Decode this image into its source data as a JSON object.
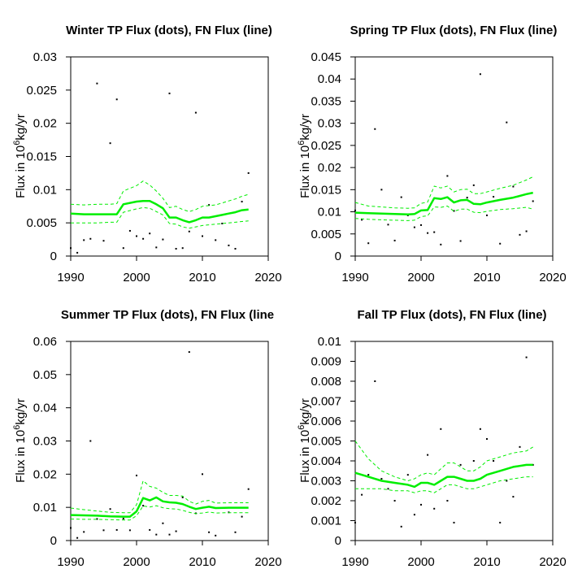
{
  "chart_data": [
    {
      "type": "scatter",
      "title": "Winter TP Flux (dots), FN Flux (line)",
      "ylabel": "Flux in 10^6kg/yr",
      "xlim": [
        1990,
        2020
      ],
      "ylim": [
        0,
        0.03
      ],
      "xticks": [
        1990,
        2000,
        2010,
        2020
      ],
      "yticks": [
        0,
        0.005,
        0.01,
        0.015,
        0.02,
        0.025,
        0.03
      ],
      "ytick_labels": [
        "0",
        "0.005",
        "0.01",
        "0.015",
        "0.02",
        "0.025",
        "0.03"
      ],
      "series": [
        {
          "kind": "dots",
          "color": "#000000",
          "x": [
            1990,
            1991,
            1992,
            1993,
            1994,
            1995,
            1996,
            1997,
            1998,
            1999,
            2000,
            2001,
            2002,
            2003,
            2004,
            2005,
            2006,
            2007,
            2008,
            2009,
            2010,
            2011,
            2012,
            2013,
            2014,
            2015,
            2016,
            2017
          ],
          "y": [
            0.0012,
            0.0005,
            0.0024,
            0.0026,
            0.026,
            0.0023,
            0.017,
            0.0236,
            0.0012,
            0.0038,
            0.003,
            0.0026,
            0.0034,
            0.0013,
            0.0025,
            0.0245,
            0.0011,
            0.0012,
            0.0037,
            0.0216,
            0.003,
            0.0077,
            0.0024,
            0.0049,
            0.0016,
            0.0011,
            0.0082,
            0.0125
          ]
        },
        {
          "kind": "line",
          "color": "#00ee00",
          "width": 2.5,
          "x": [
            1990,
            1992,
            1994,
            1996,
            1997,
            1998,
            2000,
            2001,
            2002,
            2003,
            2004,
            2005,
            2006,
            2007,
            2008,
            2009,
            2010,
            2011,
            2012,
            2013,
            2014,
            2015,
            2016,
            2017
          ],
          "y": [
            0.0064,
            0.0063,
            0.0063,
            0.0063,
            0.0063,
            0.0078,
            0.0082,
            0.0083,
            0.0083,
            0.0078,
            0.0072,
            0.0058,
            0.0058,
            0.0054,
            0.0051,
            0.0054,
            0.0058,
            0.0058,
            0.006,
            0.0062,
            0.0064,
            0.0066,
            0.0069,
            0.007
          ]
        },
        {
          "kind": "band",
          "color": "#00ee00",
          "dashed": true,
          "x": [
            1990,
            1992,
            1994,
            1996,
            1997,
            1998,
            2000,
            2001,
            2002,
            2003,
            2004,
            2005,
            2006,
            2007,
            2008,
            2009,
            2010,
            2011,
            2012,
            2013,
            2014,
            2015,
            2016,
            2017
          ],
          "y": [
            0.0078,
            0.0077,
            0.0078,
            0.0078,
            0.0079,
            0.0098,
            0.0106,
            0.0113,
            0.0107,
            0.0098,
            0.0087,
            0.0073,
            0.0075,
            0.007,
            0.0067,
            0.007,
            0.0075,
            0.0076,
            0.0077,
            0.008,
            0.0083,
            0.0086,
            0.009,
            0.0093
          ]
        },
        {
          "kind": "band",
          "color": "#00ee00",
          "dashed": true,
          "x": [
            1990,
            1992,
            1994,
            1996,
            1997,
            1998,
            2000,
            2001,
            2002,
            2003,
            2004,
            2005,
            2006,
            2007,
            2008,
            2009,
            2010,
            2011,
            2012,
            2013,
            2014,
            2015,
            2016,
            2017
          ],
          "y": [
            0.005,
            0.005,
            0.005,
            0.0051,
            0.0051,
            0.0066,
            0.0071,
            0.0073,
            0.0072,
            0.0067,
            0.0062,
            0.0049,
            0.0048,
            0.0044,
            0.0042,
            0.0044,
            0.0046,
            0.0047,
            0.0048,
            0.0049,
            0.005,
            0.0051,
            0.0052,
            0.0053
          ]
        }
      ]
    },
    {
      "type": "scatter",
      "title": "Spring TP Flux (dots), FN Flux (line)",
      "ylabel": "Flux in 10^6kg/yr",
      "xlim": [
        1990,
        2020
      ],
      "ylim": [
        0,
        0.045
      ],
      "xticks": [
        1990,
        2000,
        2010,
        2020
      ],
      "yticks": [
        0,
        0.005,
        0.01,
        0.015,
        0.02,
        0.025,
        0.03,
        0.035,
        0.04,
        0.045
      ],
      "ytick_labels": [
        "0",
        "0.005",
        "0.01",
        "0.015",
        "0.02",
        "0.025",
        "0.03",
        "0.035",
        "0.04",
        "0.045"
      ],
      "series": [
        {
          "kind": "dots",
          "color": "#000000",
          "x": [
            1990,
            1991,
            1992,
            1993,
            1994,
            1995,
            1996,
            1997,
            1998,
            1999,
            2000,
            2001,
            2002,
            2003,
            2004,
            2005,
            2006,
            2007,
            2008,
            2009,
            2010,
            2011,
            2012,
            2013,
            2014,
            2015,
            2016,
            2017
          ],
          "y": [
            0.0103,
            0.0082,
            0.0029,
            0.0287,
            0.015,
            0.0071,
            0.0035,
            0.0133,
            0.0092,
            0.0065,
            0.007,
            0.0052,
            0.0054,
            0.0026,
            0.0181,
            0.0102,
            0.0034,
            0.0132,
            0.016,
            0.0411,
            0.0092,
            0.0134,
            0.0028,
            0.0302,
            0.0157,
            0.0048,
            0.0056,
            0.0124
          ]
        },
        {
          "kind": "line",
          "color": "#00ee00",
          "width": 2.5,
          "x": [
            1990,
            1992,
            1994,
            1996,
            1998,
            1999,
            2000,
            2001,
            2002,
            2003,
            2004,
            2005,
            2006,
            2007,
            2008,
            2009,
            2010,
            2011,
            2012,
            2014,
            2016,
            2017
          ],
          "y": [
            0.0098,
            0.0097,
            0.0096,
            0.0095,
            0.0094,
            0.0095,
            0.0103,
            0.0104,
            0.0131,
            0.0129,
            0.0133,
            0.0121,
            0.0126,
            0.0127,
            0.0118,
            0.0117,
            0.0121,
            0.0124,
            0.0127,
            0.0132,
            0.014,
            0.0143
          ]
        },
        {
          "kind": "band",
          "color": "#00ee00",
          "dashed": true,
          "x": [
            1990,
            1992,
            1994,
            1996,
            1998,
            1999,
            2000,
            2001,
            2002,
            2003,
            2004,
            2005,
            2006,
            2007,
            2008,
            2009,
            2010,
            2011,
            2012,
            2014,
            2016,
            2017
          ],
          "y": [
            0.0121,
            0.0113,
            0.0111,
            0.0109,
            0.0108,
            0.0109,
            0.0119,
            0.0122,
            0.0158,
            0.0154,
            0.0158,
            0.0145,
            0.015,
            0.0151,
            0.0141,
            0.0141,
            0.0145,
            0.0149,
            0.0153,
            0.016,
            0.0172,
            0.0179
          ]
        },
        {
          "kind": "band",
          "color": "#00ee00",
          "dashed": true,
          "x": [
            1990,
            1992,
            1994,
            1996,
            1998,
            1999,
            2000,
            2001,
            2002,
            2003,
            2004,
            2005,
            2006,
            2007,
            2008,
            2009,
            2010,
            2011,
            2012,
            2014,
            2016,
            2017
          ],
          "y": [
            0.0085,
            0.0083,
            0.0082,
            0.0081,
            0.008,
            0.0081,
            0.0089,
            0.0091,
            0.0111,
            0.011,
            0.0113,
            0.0101,
            0.0106,
            0.0106,
            0.0099,
            0.0098,
            0.0101,
            0.0103,
            0.0105,
            0.0107,
            0.011,
            0.0106
          ]
        }
      ]
    },
    {
      "type": "scatter",
      "title": "Summer TP Flux (dots), FN Flux (line",
      "ylabel": "Flux in 10^6kg/yr",
      "xlim": [
        1990,
        2020
      ],
      "ylim": [
        0,
        0.06
      ],
      "xticks": [
        1990,
        2000,
        2010,
        2020
      ],
      "yticks": [
        0,
        0.01,
        0.02,
        0.03,
        0.04,
        0.05,
        0.06
      ],
      "ytick_labels": [
        "0",
        "0.01",
        "0.02",
        "0.03",
        "0.04",
        "0.05",
        "0.06"
      ],
      "series": [
        {
          "kind": "dots",
          "color": "#000000",
          "x": [
            1990,
            1991,
            1992,
            1993,
            1994,
            1995,
            1996,
            1997,
            1998,
            1999,
            2000,
            2001,
            2002,
            2003,
            2004,
            2005,
            2006,
            2007,
            2008,
            2009,
            2010,
            2011,
            2012,
            2013,
            2014,
            2015,
            2016,
            2017
          ],
          "y": [
            0.0038,
            0.0008,
            0.0026,
            0.03,
            0.0065,
            0.0031,
            0.0095,
            0.0032,
            0.0066,
            0.0031,
            0.0196,
            0.0105,
            0.0032,
            0.0018,
            0.0052,
            0.0018,
            0.0028,
            0.013,
            0.0568,
            0.0082,
            0.02,
            0.0025,
            0.0015,
            0.0098,
            0.0085,
            0.0025,
            0.0072,
            0.0155
          ]
        },
        {
          "kind": "line",
          "color": "#00ee00",
          "width": 2.5,
          "x": [
            1990,
            1992,
            1994,
            1996,
            1998,
            1999,
            2000,
            2001,
            2002,
            2003,
            2004,
            2005,
            2006,
            2007,
            2008,
            2009,
            2010,
            2011,
            2012,
            2014,
            2016,
            2017
          ],
          "y": [
            0.0077,
            0.0076,
            0.0075,
            0.0073,
            0.0072,
            0.0072,
            0.0088,
            0.0128,
            0.0121,
            0.013,
            0.0118,
            0.0115,
            0.0114,
            0.011,
            0.0102,
            0.0095,
            0.0099,
            0.0102,
            0.0098,
            0.0099,
            0.0099,
            0.0099
          ]
        },
        {
          "kind": "band",
          "color": "#00ee00",
          "dashed": true,
          "x": [
            1990,
            1992,
            1994,
            1996,
            1998,
            1999,
            2000,
            2001,
            2002,
            2003,
            2004,
            2005,
            2006,
            2007,
            2008,
            2009,
            2010,
            2011,
            2012,
            2014,
            2016,
            2017
          ],
          "y": [
            0.0098,
            0.0093,
            0.0089,
            0.0085,
            0.0084,
            0.0084,
            0.0108,
            0.018,
            0.0163,
            0.0158,
            0.0145,
            0.0136,
            0.0136,
            0.0134,
            0.0118,
            0.011,
            0.0118,
            0.0121,
            0.0113,
            0.0114,
            0.0114,
            0.0114
          ]
        },
        {
          "kind": "band",
          "color": "#00ee00",
          "dashed": true,
          "x": [
            1990,
            1992,
            1994,
            1996,
            1998,
            1999,
            2000,
            2001,
            2002,
            2003,
            2004,
            2005,
            2006,
            2007,
            2008,
            2009,
            2010,
            2011,
            2012,
            2014,
            2016,
            2017
          ],
          "y": [
            0.0065,
            0.0064,
            0.0064,
            0.0063,
            0.0062,
            0.0062,
            0.0075,
            0.0104,
            0.0101,
            0.0105,
            0.0099,
            0.0096,
            0.0095,
            0.0091,
            0.0085,
            0.0081,
            0.0083,
            0.0086,
            0.0083,
            0.0084,
            0.0084,
            0.0084
          ]
        }
      ]
    },
    {
      "type": "scatter",
      "title": "Fall TP Flux (dots), FN Flux (line)",
      "ylabel": "Flux in 10^6kg/yr",
      "xlim": [
        1990,
        2020
      ],
      "ylim": [
        0,
        0.01
      ],
      "xticks": [
        1990,
        2000,
        2010,
        2020
      ],
      "yticks": [
        0,
        0.001,
        0.002,
        0.003,
        0.004,
        0.005,
        0.006,
        0.007,
        0.008,
        0.009,
        0.01
      ],
      "ytick_labels": [
        "0",
        "0.001",
        "0.002",
        "0.003",
        "0.004",
        "0.005",
        "0.006",
        "0.007",
        "0.008",
        "0.009",
        "0.01"
      ],
      "series": [
        {
          "kind": "dots",
          "color": "#000000",
          "x": [
            1990,
            1991,
            1992,
            1993,
            1994,
            1995,
            1996,
            1997,
            1998,
            1999,
            2000,
            2001,
            2002,
            2003,
            2004,
            2005,
            2006,
            2007,
            2008,
            2009,
            2010,
            2011,
            2012,
            2013,
            2014,
            2015,
            2016,
            2017
          ],
          "y": [
            0.0009,
            0.0023,
            0.0033,
            0.008,
            0.0031,
            0.0026,
            0.002,
            0.0007,
            0.0033,
            0.0013,
            0.0018,
            0.0043,
            0.0016,
            0.0056,
            0.002,
            0.0009,
            0.0038,
            0.003,
            0.004,
            0.0056,
            0.0051,
            0.004,
            0.0009,
            0.003,
            0.0022,
            0.0047,
            0.0092,
            0.0038
          ]
        },
        {
          "kind": "line",
          "color": "#00ee00",
          "width": 2.5,
          "x": [
            1990,
            1992,
            1994,
            1996,
            1998,
            1999,
            2000,
            2001,
            2002,
            2003,
            2004,
            2005,
            2006,
            2007,
            2008,
            2009,
            2010,
            2011,
            2012,
            2014,
            2016,
            2017
          ],
          "y": [
            0.0034,
            0.0032,
            0.003,
            0.0029,
            0.0028,
            0.0027,
            0.0029,
            0.0029,
            0.0028,
            0.003,
            0.0032,
            0.0032,
            0.0031,
            0.003,
            0.003,
            0.0031,
            0.0033,
            0.0034,
            0.0035,
            0.0037,
            0.0038,
            0.0038
          ]
        },
        {
          "kind": "band",
          "color": "#00ee00",
          "dashed": true,
          "x": [
            1990,
            1992,
            1994,
            1996,
            1998,
            1999,
            2000,
            2001,
            2002,
            2003,
            2004,
            2005,
            2006,
            2007,
            2008,
            2009,
            2010,
            2011,
            2012,
            2014,
            2016,
            2017
          ],
          "y": [
            0.005,
            0.0041,
            0.0035,
            0.0032,
            0.003,
            0.0031,
            0.0033,
            0.0034,
            0.0033,
            0.0036,
            0.0039,
            0.0039,
            0.0037,
            0.0035,
            0.0035,
            0.0037,
            0.004,
            0.0041,
            0.0042,
            0.0044,
            0.0045,
            0.0047
          ]
        },
        {
          "kind": "band",
          "color": "#00ee00",
          "dashed": true,
          "x": [
            1990,
            1992,
            1994,
            1996,
            1998,
            1999,
            2000,
            2001,
            2002,
            2003,
            2004,
            2005,
            2006,
            2007,
            2008,
            2009,
            2010,
            2011,
            2012,
            2014,
            2016,
            2017
          ],
          "y": [
            0.0026,
            0.0026,
            0.0026,
            0.0025,
            0.0025,
            0.0024,
            0.0025,
            0.0025,
            0.0024,
            0.0026,
            0.0028,
            0.0028,
            0.0027,
            0.0026,
            0.0026,
            0.0027,
            0.0028,
            0.0029,
            0.003,
            0.0031,
            0.0032,
            0.0032
          ]
        }
      ]
    }
  ]
}
